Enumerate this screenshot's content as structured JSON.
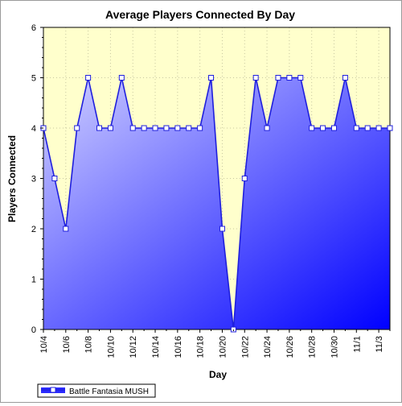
{
  "chart_data": {
    "type": "area",
    "title": "Average Players Connected By Day",
    "xlabel": "Day",
    "ylabel": "Players Connected",
    "ylim": [
      0,
      6
    ],
    "yticks": [
      "0",
      "1",
      "2",
      "3",
      "4",
      "5",
      "6"
    ],
    "grid": true,
    "legend_position": "bottom-left",
    "colors": {
      "plot_background": "#ffffcc",
      "line": "#1f1fdd",
      "fill_light": "#d0d0ff",
      "fill_dark": "#0000ff",
      "marker_fill": "#ffffff"
    },
    "x": [
      "10/4",
      "10/5",
      "10/6",
      "10/7",
      "10/8",
      "10/9",
      "10/10",
      "10/11",
      "10/12",
      "10/13",
      "10/14",
      "10/15",
      "10/16",
      "10/17",
      "10/18",
      "10/19",
      "10/20",
      "10/21",
      "10/22",
      "10/23",
      "10/24",
      "10/25",
      "10/26",
      "10/27",
      "10/28",
      "10/29",
      "10/30",
      "10/31",
      "11/1",
      "11/2",
      "11/3",
      "11/4"
    ],
    "x_tick_labels": [
      "10/4",
      "10/6",
      "10/8",
      "10/10",
      "10/12",
      "10/14",
      "10/16",
      "10/18",
      "10/20",
      "10/22",
      "10/24",
      "10/26",
      "10/28",
      "10/30",
      "11/1",
      "11/3"
    ],
    "series": [
      {
        "name": "Battle Fantasia MUSH",
        "values": [
          4,
          3,
          2,
          4,
          5,
          4,
          4,
          5,
          4,
          4,
          4,
          4,
          4,
          4,
          4,
          5,
          2,
          0,
          3,
          5,
          4,
          5,
          5,
          5,
          4,
          4,
          4,
          5,
          4,
          4,
          4,
          4
        ]
      }
    ]
  }
}
